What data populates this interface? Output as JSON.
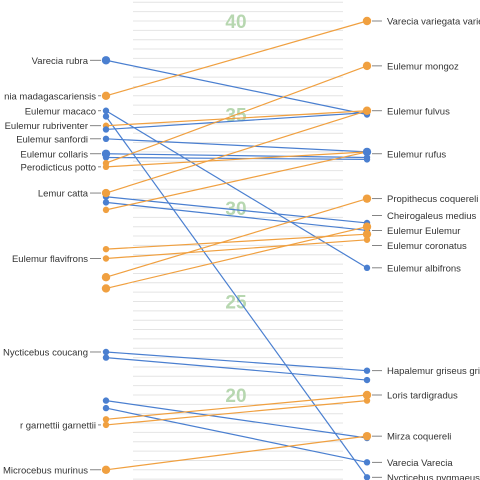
{
  "chart_data": {
    "type": "slope",
    "title": "",
    "xlabel": "",
    "ylabel": "",
    "ylim": [
      15.5,
      41.5
    ],
    "y_ticks": [
      20,
      25,
      30,
      35,
      40
    ],
    "grid": true,
    "colors": {
      "blue": "#4a7fd0",
      "orange": "#f0a040",
      "grid": "#e4e4e4",
      "tick": "#b7d7b0",
      "label": "#333333",
      "leader": "#666666"
    },
    "left_labels": [
      {
        "text": "Varecia rubra",
        "y": 37.9
      },
      {
        "text": "Eulemur rubriventer",
        "y": 34.4
      },
      {
        "text": "Eulemur sanfordi",
        "y": 33.7
      },
      {
        "text": "Eulemur collaris",
        "y": 32.9
      },
      {
        "text": "Lemur catta",
        "y": 30.8
      },
      {
        "text": "Eulemur flavifrons",
        "y": 27.3
      },
      {
        "text": "Nycticebus coucang",
        "y": 22.3
      },
      {
        "text": "Microcebus murinus",
        "y": 16.0
      }
    ],
    "right_labels": [
      {
        "text": "Varecia variegata variegata",
        "y": 40.0
      },
      {
        "text": "Eulemur mongoz",
        "y": 37.6
      },
      {
        "text": "Eulemur fulvus",
        "y": 35.2
      },
      {
        "text": "Eulemur rufus",
        "y": 32.9
      },
      {
        "text": "Propithecus coquereli",
        "y": 30.5
      },
      {
        "text": "Cheirogaleus medius",
        "y": 29.6
      },
      {
        "text": "Eulemur Eulemur",
        "y": 28.8
      },
      {
        "text": "Eulemur coronatus",
        "y": 28.0
      },
      {
        "text": "Eulemur albifrons",
        "y": 26.8
      },
      {
        "text": "Hapalemur griseus griseus",
        "y": 21.3
      },
      {
        "text": "Loris tardigradus",
        "y": 20.0
      },
      {
        "text": "Mirza coquereli",
        "y": 17.8
      },
      {
        "text": "Varecia Varecia",
        "y": 16.4
      },
      {
        "text": "Nycticebus pygmaeus",
        "y": 15.6
      }
    ],
    "clipped_labels": [
      {
        "text": "nia madagascariensis",
        "y": 36.0
      },
      {
        "text": "Eulemur macaco",
        "y": 35.2
      },
      {
        "text": "Perodicticus potto",
        "y": 32.2
      },
      {
        "text": "r garnettii garnettii",
        "y": 18.4
      }
    ],
    "series": [
      {
        "color": "blue",
        "values": [
          37.9,
          35.0
        ]
      },
      {
        "color": "orange",
        "values": [
          36.0,
          40.0
        ]
      },
      {
        "color": "blue",
        "values": [
          35.2,
          26.8
        ]
      },
      {
        "color": "blue",
        "values": [
          34.9,
          15.6
        ]
      },
      {
        "color": "orange",
        "values": [
          34.4,
          35.2
        ]
      },
      {
        "color": "blue",
        "values": [
          34.2,
          35.1
        ]
      },
      {
        "color": "blue",
        "values": [
          33.7,
          33.0
        ]
      },
      {
        "color": "blue",
        "values": [
          32.9,
          32.7
        ]
      },
      {
        "color": "blue",
        "values": [
          32.7,
          32.6
        ]
      },
      {
        "color": "orange",
        "values": [
          32.4,
          37.6
        ]
      },
      {
        "color": "orange",
        "values": [
          32.2,
          33.0
        ]
      },
      {
        "color": "orange",
        "values": [
          30.8,
          35.2
        ]
      },
      {
        "color": "blue",
        "values": [
          30.6,
          29.2
        ]
      },
      {
        "color": "blue",
        "values": [
          30.3,
          28.8
        ]
      },
      {
        "color": "orange",
        "values": [
          29.9,
          33.0
        ]
      },
      {
        "color": "orange",
        "values": [
          27.8,
          28.6
        ]
      },
      {
        "color": "orange",
        "values": [
          27.3,
          28.3
        ]
      },
      {
        "color": "orange",
        "values": [
          26.3,
          30.5
        ]
      },
      {
        "color": "orange",
        "values": [
          25.7,
          29.0
        ]
      },
      {
        "color": "blue",
        "values": [
          22.3,
          21.3
        ]
      },
      {
        "color": "blue",
        "values": [
          22.0,
          20.8
        ]
      },
      {
        "color": "blue",
        "values": [
          19.7,
          17.7
        ]
      },
      {
        "color": "blue",
        "values": [
          19.3,
          16.4
        ]
      },
      {
        "color": "orange",
        "values": [
          18.7,
          20.0
        ]
      },
      {
        "color": "orange",
        "values": [
          18.4,
          19.7
        ]
      },
      {
        "color": "orange",
        "values": [
          16.0,
          17.8
        ]
      }
    ]
  }
}
